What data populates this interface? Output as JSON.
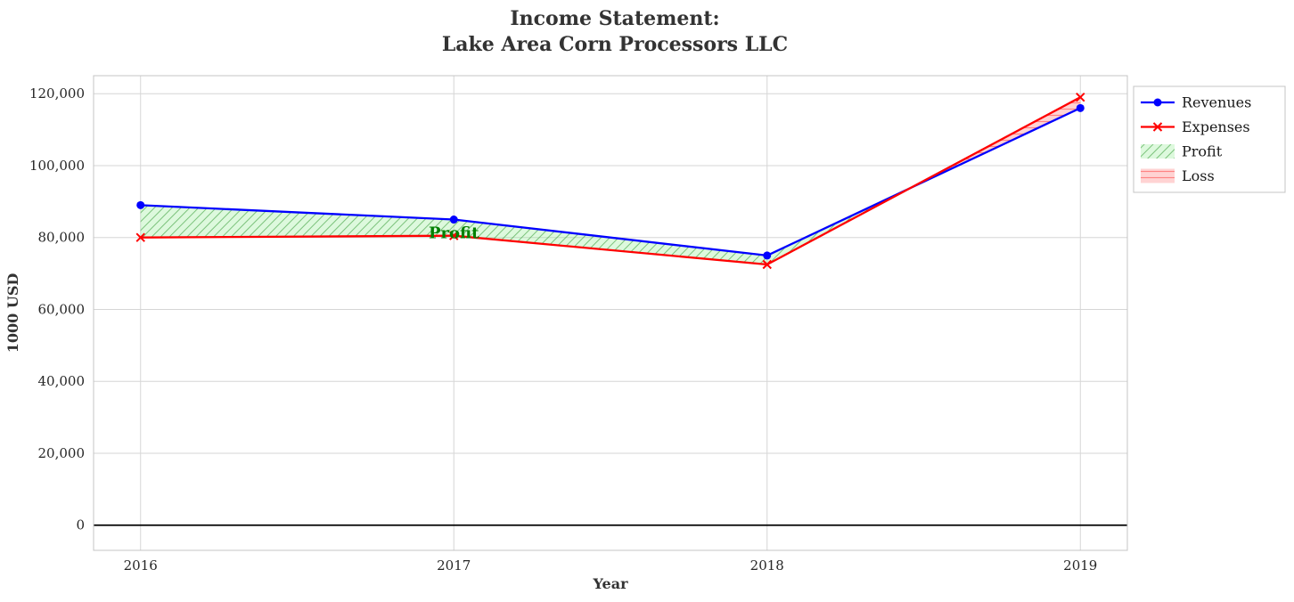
{
  "title": {
    "line1": "Income Statement:",
    "line2": "Lake Area Corn Processors LLC"
  },
  "chart_data": {
    "type": "line",
    "title": "Income Statement: Lake Area Corn Processors LLC",
    "xlabel": "Year",
    "ylabel": "1000 USD",
    "x": [
      2016,
      2017,
      2018,
      2019
    ],
    "series": [
      {
        "name": "Revenues",
        "color": "#0000ff",
        "marker": "circle",
        "values": [
          89000,
          85000,
          75000,
          116000
        ]
      },
      {
        "name": "Expenses",
        "color": "#ff0000",
        "marker": "x",
        "values": [
          80000,
          80500,
          72500,
          119000
        ]
      }
    ],
    "fills": [
      {
        "name": "Profit",
        "pattern": "green-hatch",
        "rule": "revenues_above_expenses"
      },
      {
        "name": "Loss",
        "pattern": "red-hatch",
        "rule": "expenses_above_revenues"
      }
    ],
    "annotation": {
      "text": "Profit",
      "x": 2017,
      "y": 81000,
      "color": "#008000"
    },
    "xlim": [
      2015.85,
      2019.15
    ],
    "ylim": [
      -7000,
      125000
    ],
    "yticks": [
      0,
      20000,
      40000,
      60000,
      80000,
      100000,
      120000
    ],
    "zero_line": 0,
    "grid": true,
    "legend_position": "upper right"
  }
}
